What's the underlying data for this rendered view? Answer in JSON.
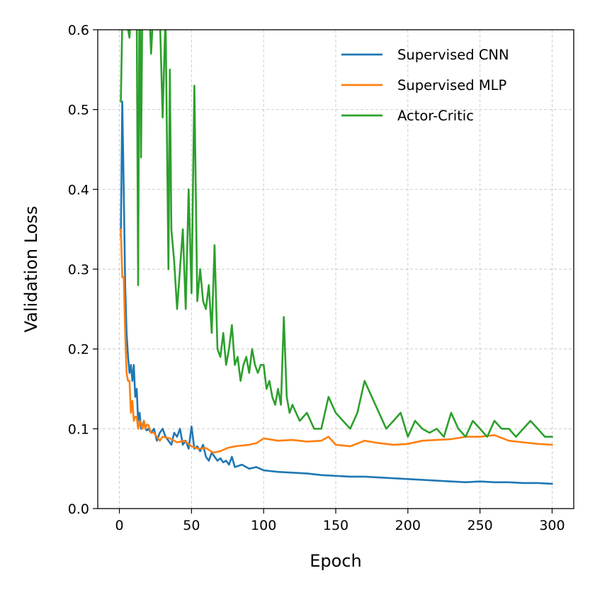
{
  "chart_data": {
    "type": "line",
    "title": "",
    "xlabel": "Epoch",
    "ylabel": "Validation Loss",
    "xlim": [
      -15,
      315
    ],
    "ylim": [
      0.0,
      0.6
    ],
    "xticks": [
      0,
      50,
      100,
      150,
      200,
      250,
      300
    ],
    "yticks": [
      0.0,
      0.1,
      0.2,
      0.3,
      0.4,
      0.5,
      0.6
    ],
    "xtick_labels": [
      "0",
      "50",
      "100",
      "150",
      "200",
      "250",
      "300"
    ],
    "ytick_labels": [
      "0.0",
      "0.1",
      "0.2",
      "0.3",
      "0.4",
      "0.5",
      "0.6"
    ],
    "grid": true,
    "legend_position": "top-right",
    "series": [
      {
        "name": "Supervised CNN",
        "color": "#1f77b4",
        "x": [
          1,
          2,
          3,
          4,
          5,
          6,
          7,
          8,
          9,
          10,
          11,
          12,
          13,
          14,
          15,
          16,
          17,
          18,
          19,
          20,
          22,
          24,
          26,
          28,
          30,
          32,
          34,
          36,
          38,
          40,
          42,
          44,
          46,
          48,
          50,
          52,
          54,
          56,
          58,
          60,
          62,
          64,
          66,
          68,
          70,
          72,
          74,
          76,
          78,
          80,
          85,
          90,
          95,
          100,
          110,
          120,
          130,
          140,
          150,
          160,
          170,
          180,
          190,
          200,
          210,
          220,
          230,
          240,
          250,
          260,
          270,
          280,
          290,
          300
        ],
        "values": [
          0.34,
          0.51,
          0.4,
          0.28,
          0.22,
          0.19,
          0.17,
          0.18,
          0.16,
          0.18,
          0.14,
          0.15,
          0.11,
          0.12,
          0.1,
          0.105,
          0.11,
          0.1,
          0.098,
          0.1,
          0.095,
          0.1,
          0.085,
          0.095,
          0.1,
          0.09,
          0.085,
          0.08,
          0.095,
          0.09,
          0.1,
          0.08,
          0.085,
          0.075,
          0.103,
          0.075,
          0.078,
          0.072,
          0.08,
          0.065,
          0.06,
          0.07,
          0.065,
          0.06,
          0.063,
          0.058,
          0.06,
          0.055,
          0.065,
          0.052,
          0.055,
          0.05,
          0.052,
          0.048,
          0.046,
          0.045,
          0.044,
          0.042,
          0.041,
          0.04,
          0.04,
          0.039,
          0.038,
          0.037,
          0.036,
          0.035,
          0.034,
          0.033,
          0.034,
          0.033,
          0.033,
          0.032,
          0.032,
          0.031
        ]
      },
      {
        "name": "Supervised MLP",
        "color": "#ff7f0e",
        "x": [
          1,
          2,
          3,
          4,
          5,
          6,
          7,
          8,
          9,
          10,
          11,
          12,
          13,
          14,
          15,
          16,
          17,
          18,
          19,
          20,
          22,
          24,
          26,
          28,
          30,
          35,
          40,
          45,
          50,
          55,
          60,
          65,
          70,
          75,
          80,
          85,
          90,
          95,
          100,
          110,
          120,
          130,
          140,
          145,
          150,
          160,
          170,
          180,
          190,
          200,
          210,
          220,
          230,
          240,
          250,
          260,
          270,
          280,
          290,
          300
        ],
        "values": [
          0.35,
          0.29,
          0.29,
          0.22,
          0.17,
          0.16,
          0.16,
          0.12,
          0.135,
          0.11,
          0.115,
          0.115,
          0.1,
          0.11,
          0.105,
          0.1,
          0.11,
          0.1,
          0.105,
          0.105,
          0.095,
          0.095,
          0.09,
          0.085,
          0.09,
          0.088,
          0.083,
          0.085,
          0.078,
          0.075,
          0.076,
          0.07,
          0.072,
          0.076,
          0.078,
          0.079,
          0.08,
          0.082,
          0.088,
          0.085,
          0.086,
          0.084,
          0.085,
          0.09,
          0.08,
          0.078,
          0.085,
          0.082,
          0.08,
          0.081,
          0.085,
          0.086,
          0.087,
          0.09,
          0.09,
          0.092,
          0.085,
          0.083,
          0.081,
          0.08
        ]
      },
      {
        "name": "Actor-Critic",
        "color": "#2ca02c",
        "x": [
          1,
          2,
          3,
          4,
          5,
          6,
          7,
          8,
          9,
          10,
          11,
          12,
          13,
          14,
          15,
          16,
          18,
          20,
          22,
          24,
          26,
          28,
          30,
          32,
          34,
          35,
          36,
          38,
          40,
          42,
          44,
          46,
          48,
          50,
          52,
          54,
          56,
          58,
          60,
          62,
          64,
          66,
          68,
          70,
          72,
          74,
          76,
          78,
          80,
          82,
          84,
          86,
          88,
          90,
          92,
          94,
          96,
          98,
          100,
          102,
          104,
          106,
          108,
          110,
          112,
          114,
          116,
          118,
          120,
          125,
          130,
          135,
          140,
          145,
          150,
          155,
          160,
          165,
          170,
          175,
          180,
          185,
          190,
          195,
          200,
          205,
          210,
          215,
          220,
          225,
          230,
          235,
          240,
          245,
          250,
          255,
          260,
          265,
          270,
          275,
          280,
          285,
          290,
          295,
          300
        ],
        "values": [
          0.51,
          0.61,
          0.66,
          0.61,
          0.65,
          0.6,
          0.59,
          0.62,
          0.63,
          0.64,
          0.69,
          0.62,
          0.28,
          0.69,
          0.44,
          0.64,
          0.62,
          0.66,
          0.57,
          0.64,
          0.6,
          0.62,
          0.49,
          0.62,
          0.3,
          0.55,
          0.35,
          0.31,
          0.25,
          0.3,
          0.35,
          0.25,
          0.4,
          0.27,
          0.53,
          0.26,
          0.3,
          0.26,
          0.25,
          0.28,
          0.22,
          0.33,
          0.2,
          0.19,
          0.22,
          0.18,
          0.2,
          0.23,
          0.18,
          0.19,
          0.16,
          0.18,
          0.19,
          0.17,
          0.2,
          0.18,
          0.17,
          0.18,
          0.18,
          0.15,
          0.16,
          0.14,
          0.13,
          0.15,
          0.13,
          0.24,
          0.14,
          0.12,
          0.13,
          0.11,
          0.12,
          0.1,
          0.1,
          0.14,
          0.12,
          0.11,
          0.1,
          0.12,
          0.16,
          0.14,
          0.12,
          0.1,
          0.11,
          0.12,
          0.09,
          0.11,
          0.1,
          0.095,
          0.1,
          0.09,
          0.12,
          0.1,
          0.09,
          0.11,
          0.1,
          0.09,
          0.11,
          0.1,
          0.1,
          0.09,
          0.1,
          0.11,
          0.1,
          0.09,
          0.09
        ]
      }
    ]
  }
}
